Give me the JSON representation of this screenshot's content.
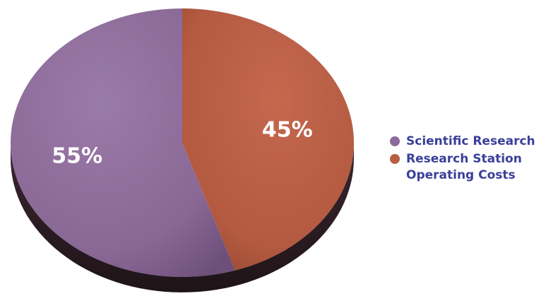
{
  "chart_data": {
    "type": "pie",
    "slices": [
      {
        "label": "Scientific Research",
        "value": 55,
        "display": "55%",
        "color": "#8e6a9a"
      },
      {
        "label": "Research Station Operating Costs",
        "value": 45,
        "display": "45%",
        "color": "#b85e45"
      }
    ],
    "legend": {
      "position": "right",
      "items": [
        {
          "label": "Scientific Research",
          "color": "#8e6a9a"
        },
        {
          "label": "Research Station\nOperating Costs",
          "color": "#b85e45"
        }
      ]
    }
  }
}
